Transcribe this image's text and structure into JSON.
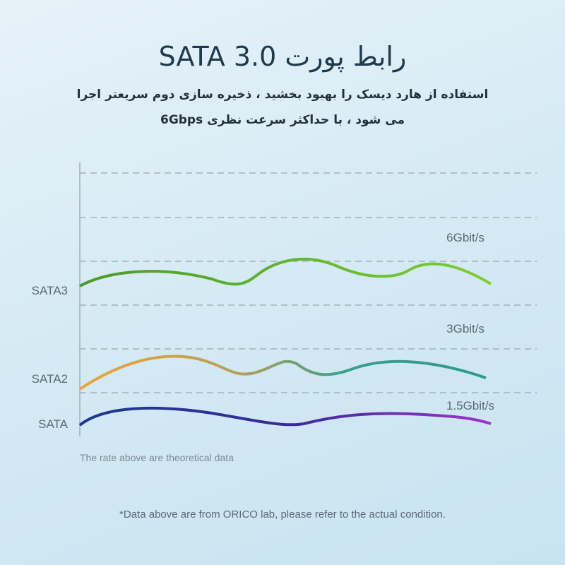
{
  "header": {
    "title": "رابط پورت SATA 3.0",
    "subtitle": [
      "استفاده از هارد دیسک را بهبود بخشید ، ذخیره سازی دوم سریعتر اجرا",
      "می شود ، با حداکثر سرعت نظری 6Gbps"
    ]
  },
  "diagram": {
    "interfaces": [
      {
        "name": "SATA3",
        "speed": "6Gbit/s"
      },
      {
        "name": "SATA2",
        "speed": "3Gbit/s"
      },
      {
        "name": "SATA",
        "speed": "1.5Gbit/s"
      }
    ],
    "note": "The rate above are theoretical data"
  },
  "footer": {
    "note": "*Data above are from ORICO lab, please refer to the actual condition."
  }
}
